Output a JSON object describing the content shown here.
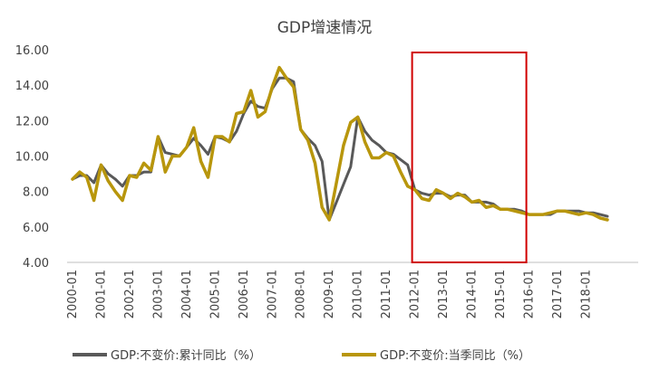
{
  "chart_data": {
    "type": "line",
    "title": "GDP增速情况",
    "xlabel": "",
    "ylabel": "",
    "ylim": [
      4,
      16
    ],
    "yticks": [
      "4.00",
      "6.00",
      "8.00",
      "10.00",
      "12.00",
      "14.00",
      "16.00"
    ],
    "x_tick_labels": [
      "2000-01",
      "2001-01",
      "2002-01",
      "2003-01",
      "2004-01",
      "2005-01",
      "2006-01",
      "2007-01",
      "2008-01",
      "2009-01",
      "2010-01",
      "2011-01",
      "2012-01",
      "2013-01",
      "2014-01",
      "2015-01",
      "2016-01",
      "2017-01",
      "2018-01"
    ],
    "x": [
      "2000-Q1",
      "2000-Q2",
      "2000-Q3",
      "2000-Q4",
      "2001-Q1",
      "2001-Q2",
      "2001-Q3",
      "2001-Q4",
      "2002-Q1",
      "2002-Q2",
      "2002-Q3",
      "2002-Q4",
      "2003-Q1",
      "2003-Q2",
      "2003-Q3",
      "2003-Q4",
      "2004-Q1",
      "2004-Q2",
      "2004-Q3",
      "2004-Q4",
      "2005-Q1",
      "2005-Q2",
      "2005-Q3",
      "2005-Q4",
      "2006-Q1",
      "2006-Q2",
      "2006-Q3",
      "2006-Q4",
      "2007-Q1",
      "2007-Q2",
      "2007-Q3",
      "2007-Q4",
      "2008-Q1",
      "2008-Q2",
      "2008-Q3",
      "2008-Q4",
      "2009-Q1",
      "2009-Q2",
      "2009-Q3",
      "2009-Q4",
      "2010-Q1",
      "2010-Q2",
      "2010-Q3",
      "2010-Q4",
      "2011-Q1",
      "2011-Q2",
      "2011-Q3",
      "2011-Q4",
      "2012-Q1",
      "2012-Q2",
      "2012-Q3",
      "2012-Q4",
      "2013-Q1",
      "2013-Q2",
      "2013-Q3",
      "2013-Q4",
      "2014-Q1",
      "2014-Q2",
      "2014-Q3",
      "2014-Q4",
      "2015-Q1",
      "2015-Q2",
      "2015-Q3",
      "2015-Q4",
      "2016-Q1",
      "2016-Q2",
      "2016-Q3",
      "2016-Q4",
      "2017-Q1",
      "2017-Q2",
      "2017-Q3",
      "2017-Q4",
      "2018-Q1",
      "2018-Q2",
      "2018-Q3",
      "2018-Q4"
    ],
    "series": [
      {
        "name": "GDP:不变价:累计同比（%）",
        "color": "#595959",
        "values": [
          8.7,
          8.9,
          8.9,
          8.5,
          9.5,
          9.0,
          8.7,
          8.3,
          8.9,
          8.9,
          9.1,
          9.1,
          11.1,
          10.2,
          10.1,
          10.0,
          10.5,
          11.0,
          10.6,
          10.1,
          11.1,
          11.0,
          10.8,
          11.4,
          12.4,
          13.1,
          12.8,
          12.7,
          13.8,
          14.4,
          14.4,
          14.2,
          11.5,
          11.0,
          10.6,
          9.7,
          6.4,
          7.4,
          8.4,
          9.4,
          12.2,
          11.4,
          10.9,
          10.6,
          10.2,
          10.1,
          9.8,
          9.5,
          8.1,
          7.9,
          7.8,
          7.9,
          7.9,
          7.7,
          7.8,
          7.8,
          7.4,
          7.4,
          7.4,
          7.3,
          7.0,
          7.0,
          7.0,
          6.9,
          6.7,
          6.7,
          6.7,
          6.7,
          6.9,
          6.9,
          6.9,
          6.9,
          6.8,
          6.8,
          6.7,
          6.6
        ]
      },
      {
        "name": "GDP:不变价:当季同比（%）",
        "color": "#B8960C",
        "values": [
          8.7,
          9.1,
          8.8,
          7.5,
          9.5,
          8.6,
          8.0,
          7.5,
          8.9,
          8.8,
          9.6,
          9.2,
          11.1,
          9.1,
          10.0,
          10.0,
          10.5,
          11.6,
          9.7,
          8.8,
          11.1,
          11.1,
          10.8,
          12.4,
          12.5,
          13.7,
          12.2,
          12.5,
          13.9,
          15.0,
          14.4,
          13.9,
          11.5,
          10.9,
          9.6,
          7.1,
          6.4,
          8.5,
          10.6,
          11.9,
          12.2,
          10.8,
          9.9,
          9.9,
          10.2,
          10.0,
          9.1,
          8.3,
          8.1,
          7.6,
          7.5,
          8.1,
          7.9,
          7.6,
          7.9,
          7.7,
          7.4,
          7.5,
          7.1,
          7.2,
          7.0,
          7.0,
          6.9,
          6.8,
          6.7,
          6.7,
          6.7,
          6.8,
          6.9,
          6.9,
          6.8,
          6.7,
          6.8,
          6.7,
          6.5,
          6.4
        ]
      }
    ],
    "highlight_box": {
      "color": "#D00000",
      "from": "2012-Q1",
      "to": "2015-Q4"
    },
    "grid": false,
    "legend_position": "bottom"
  }
}
